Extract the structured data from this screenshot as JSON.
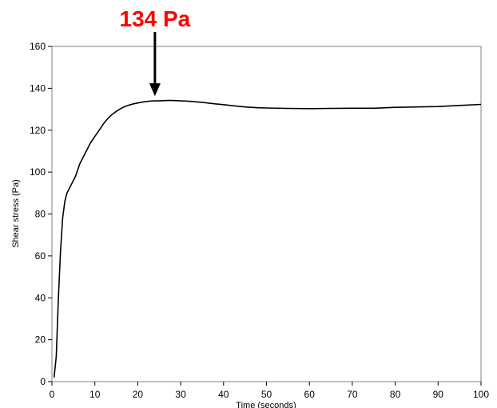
{
  "chart_data": {
    "type": "line",
    "title": "",
    "xlabel": "Time (seconds)",
    "ylabel": "Shear stress (Pa)",
    "xlim": [
      0,
      100
    ],
    "ylim": [
      0,
      160
    ],
    "xticks": [
      0,
      10,
      20,
      30,
      40,
      50,
      60,
      70,
      80,
      90,
      100
    ],
    "yticks": [
      0,
      20,
      40,
      60,
      80,
      100,
      120,
      140,
      160
    ],
    "grid": false,
    "legend": "none",
    "series": [
      {
        "name": "",
        "color": "#000000",
        "x": [
          0.5,
          1,
          1.5,
          2,
          2.5,
          3,
          3.5,
          4,
          4.5,
          5,
          5.5,
          6,
          6.5,
          7,
          8,
          9,
          10,
          11,
          12,
          13,
          14,
          15,
          16,
          17,
          18,
          19,
          20,
          21,
          22,
          23,
          24,
          25,
          26,
          27,
          28,
          30,
          32,
          35,
          38,
          40,
          42,
          45,
          48,
          50,
          55,
          60,
          65,
          70,
          75,
          80,
          85,
          90,
          95,
          100
        ],
        "y": [
          2,
          12,
          40,
          62,
          78,
          86,
          90,
          92,
          94,
          96,
          98,
          101,
          104,
          106,
          110,
          114,
          117,
          120,
          123,
          125.5,
          127.5,
          129,
          130.3,
          131.3,
          132,
          132.6,
          133,
          133.4,
          133.7,
          133.9,
          134,
          134,
          134.1,
          134.2,
          134.2,
          134,
          133.8,
          133.3,
          132.6,
          132.2,
          131.7,
          131.1,
          130.7,
          130.6,
          130.4,
          130.3,
          130.4,
          130.5,
          130.5,
          130.9,
          131.1,
          131.3,
          131.8,
          132.3
        ]
      }
    ],
    "annotations": [
      {
        "text": "134 Pa",
        "x": 24,
        "y": 134,
        "color": "#ff0000",
        "arrow": true
      }
    ]
  }
}
